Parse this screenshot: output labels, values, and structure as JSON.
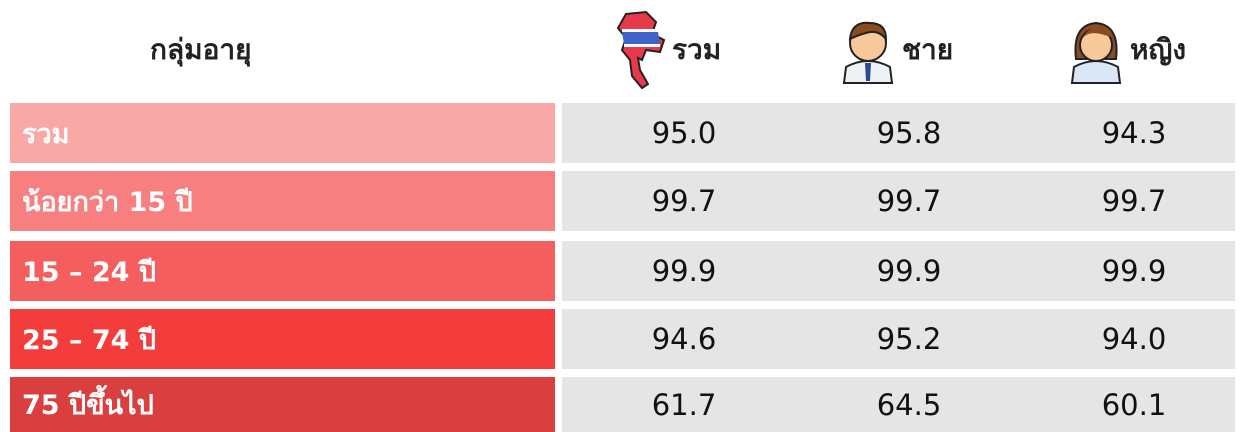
{
  "table": {
    "header": [
      "กลุ่มอายุ",
      "รวม",
      "ชาย",
      "หญิง"
    ],
    "rows": [
      [
        "รวม",
        "95.0",
        "95.8",
        "94.3"
      ],
      [
        "น้อยกว่า 15 ปี",
        "99.7",
        "99.7",
        "99.7"
      ],
      [
        "15 – 24 ปี",
        "99.9",
        "99.9",
        "99.9"
      ],
      [
        "25 – 74 ปี",
        "94.6",
        "95.2",
        "94.0"
      ],
      [
        "75 ปีขึ้นไป",
        "61.7",
        "64.5",
        "60.1"
      ]
    ]
  }
}
